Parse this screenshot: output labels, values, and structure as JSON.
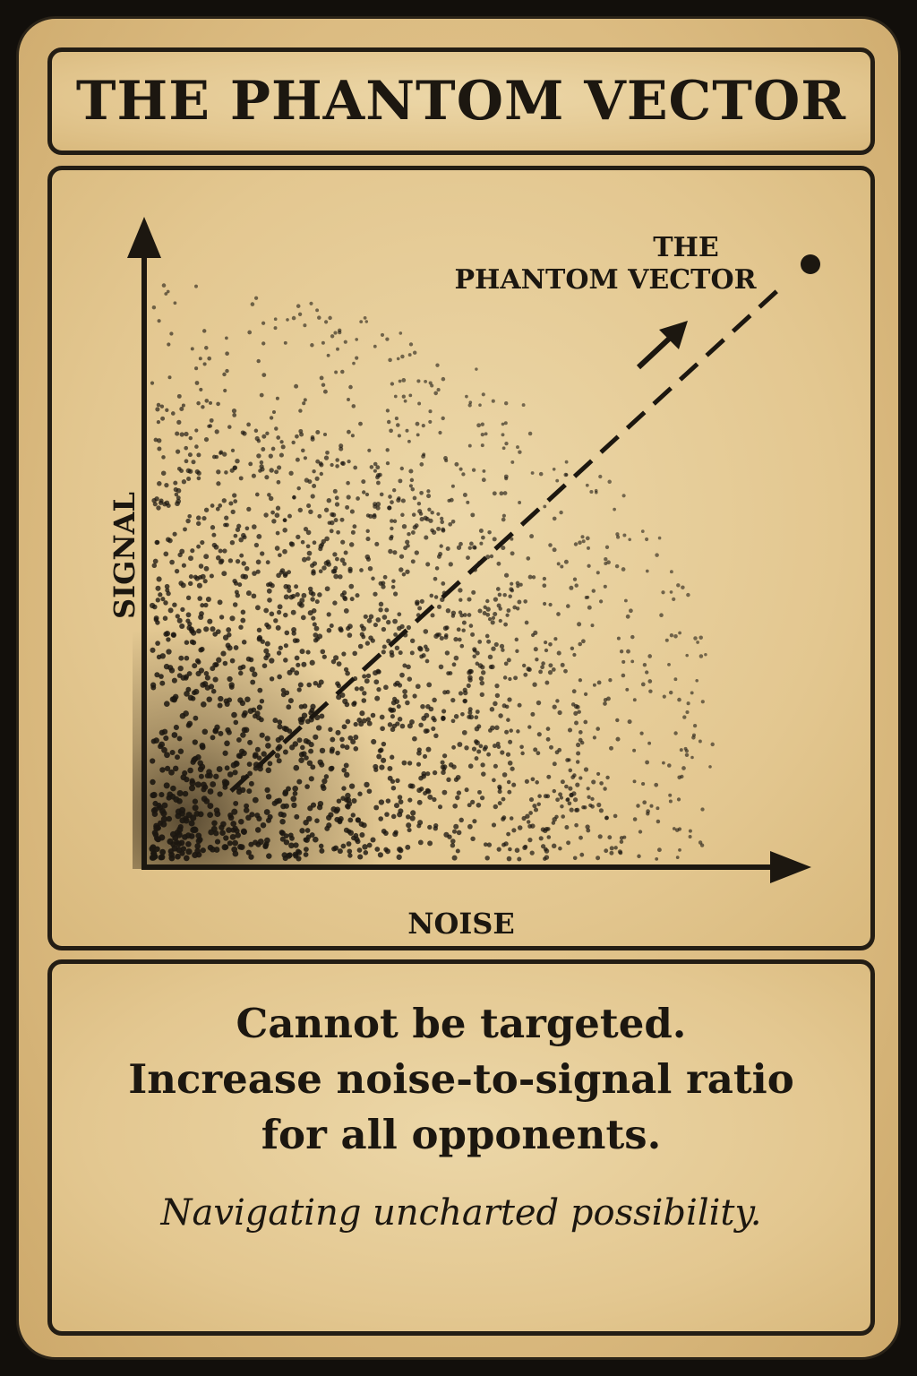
{
  "card": {
    "title": "THE PHANTOM VECTOR",
    "rules": [
      "Cannot be targeted.",
      "Increase noise-to-signal ratio",
      "for all opponents."
    ],
    "flavor": "Navigating uncharted possibility.",
    "colors": {
      "parchment": "#e3c790",
      "ink": "#1c1710",
      "border": "#120f0b"
    }
  },
  "chart_data": {
    "type": "scatter",
    "xlabel": "NOISE",
    "ylabel": "SIGNAL",
    "annotation": [
      "THE",
      "PHANTOM VECTOR"
    ],
    "density": "points concentrated at the origin, thinning toward upper-right",
    "trend": "dashed line from origin toward the annotated point, with arrow"
  }
}
